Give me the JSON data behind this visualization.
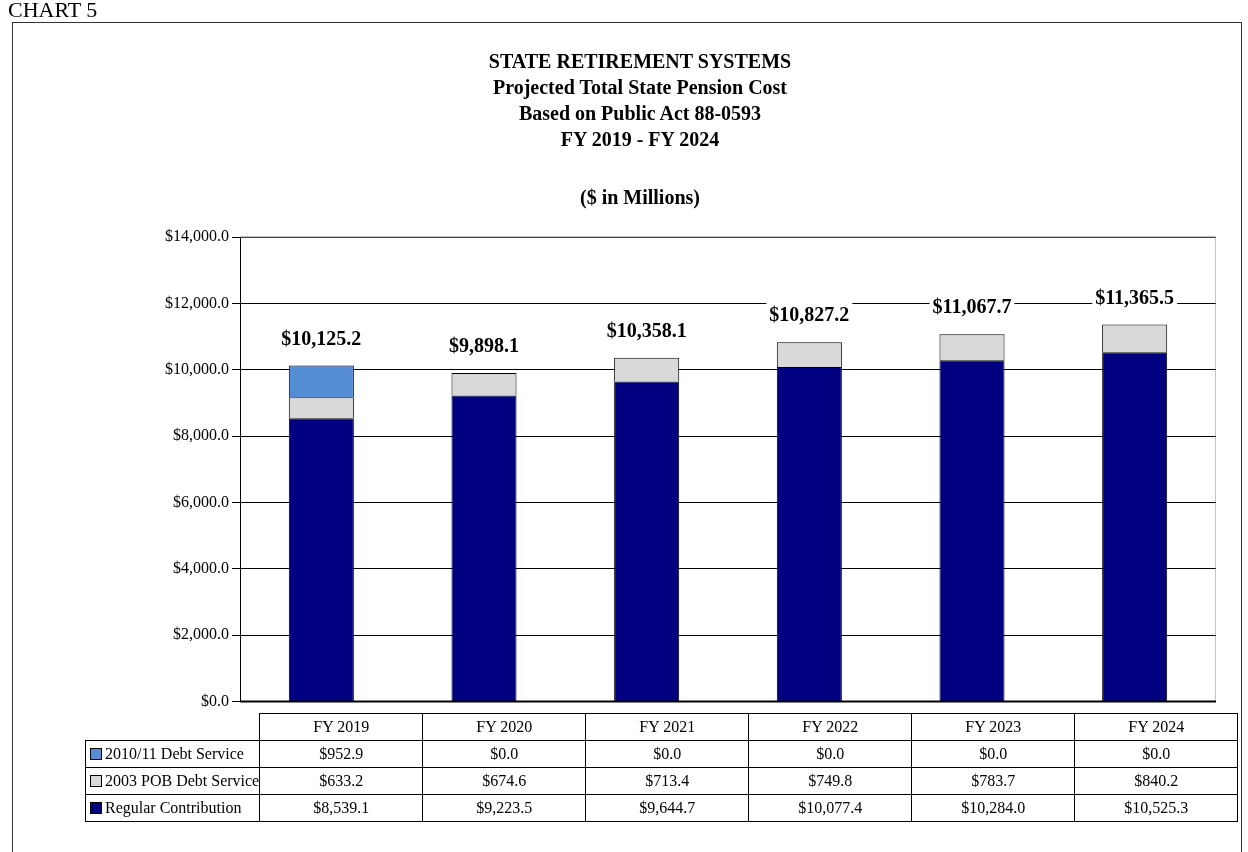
{
  "chart_data": {
    "type": "bar",
    "stacked": true,
    "title": "STATE RETIREMENT SYSTEMS\nProjected Total State Pension Cost\nBased on Public Act 88-0593\nFY 2019 - FY 2024",
    "subtitle": "($ in Millions)",
    "annotations": [
      "CHART 5"
    ],
    "categories": [
      "FY 2019",
      "FY 2020",
      "FY 2021",
      "FY 2022",
      "FY 2023",
      "FY 2024"
    ],
    "series": [
      {
        "name": "Regular Contribution",
        "color": "#000080",
        "values": [
          8539.1,
          9223.5,
          9644.7,
          10077.4,
          10284.0,
          10525.3
        ],
        "value_labels": [
          "$8,539.1",
          "$9,223.5",
          "$9,644.7",
          "$10,077.4",
          "$10,284.0",
          "$10,525.3"
        ]
      },
      {
        "name": "2003 POB Debt Service",
        "color": "#d9d9d9",
        "values": [
          633.2,
          674.6,
          713.4,
          749.8,
          783.7,
          840.2
        ],
        "value_labels": [
          "$633.2",
          "$674.6",
          "$713.4",
          "$749.8",
          "$783.7",
          "$840.2"
        ]
      },
      {
        "name": "2010/11 Debt Service",
        "color": "#558ed5",
        "values": [
          952.9,
          0.0,
          0.0,
          0.0,
          0.0,
          0.0
        ],
        "value_labels": [
          "$952.9",
          "$0.0",
          "$0.0",
          "$0.0",
          "$0.0",
          "$0.0"
        ]
      }
    ],
    "totals": [
      "$10,125.2",
      "$9,898.1",
      "$10,358.1",
      "$10,827.2",
      "$11,067.7",
      "$11,365.5"
    ],
    "ylim": [
      0,
      14000
    ],
    "yticks": [
      {
        "value": 0,
        "label": "$0.0"
      },
      {
        "value": 2000,
        "label": "$2,000.0"
      },
      {
        "value": 4000,
        "label": "$4,000.0"
      },
      {
        "value": 6000,
        "label": "$6,000.0"
      },
      {
        "value": 8000,
        "label": "$8,000.0"
      },
      {
        "value": 10000,
        "label": "$10,000.0"
      },
      {
        "value": 12000,
        "label": "$12,000.0"
      },
      {
        "value": 14000,
        "label": "$14,000.0"
      }
    ],
    "grid": "y",
    "legend": "bottom"
  }
}
